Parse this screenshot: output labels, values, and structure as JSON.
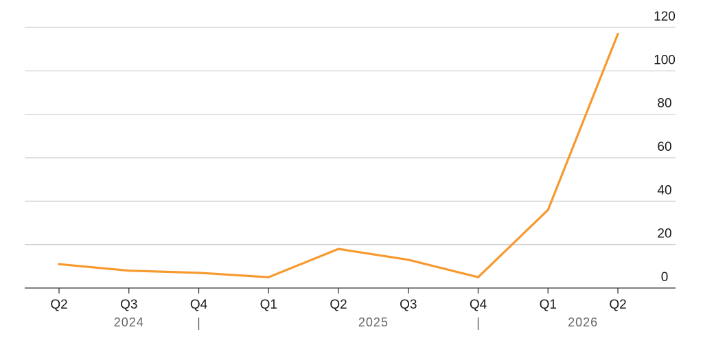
{
  "chart_data": {
    "type": "line",
    "title": "",
    "xlabel": "",
    "ylabel": "",
    "categories": [
      "Q2",
      "Q3",
      "Q4",
      "Q1",
      "Q2",
      "Q3",
      "Q4",
      "Q1",
      "Q2"
    ],
    "year_groups": [
      {
        "label": "2024",
        "start": 0,
        "end": 2
      },
      {
        "label": "2025",
        "start": 3,
        "end": 6
      },
      {
        "label": "2026",
        "start": 7,
        "end": 8
      }
    ],
    "series": [
      {
        "values": [
          11,
          8,
          7,
          5,
          18,
          13,
          5,
          36,
          117
        ]
      }
    ],
    "ylim": [
      0,
      120
    ],
    "yticks": [
      "0",
      "20",
      "40",
      "60",
      "80",
      "100",
      "120"
    ],
    "grid": true,
    "y_axis_side": "right",
    "colors": {
      "series": "#f7992d",
      "grid": "#cccccc",
      "axis": "#333333"
    }
  }
}
